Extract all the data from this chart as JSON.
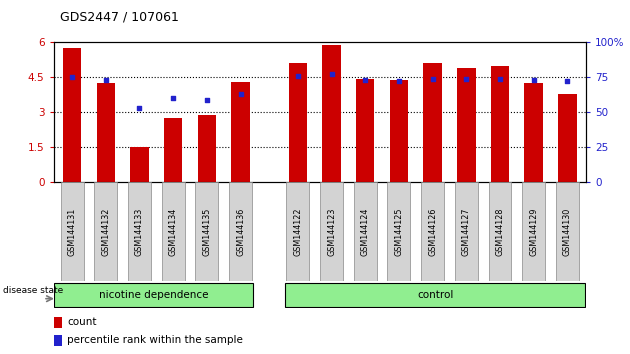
{
  "title": "GDS2447 / 107061",
  "samples": [
    "GSM144131",
    "GSM144132",
    "GSM144133",
    "GSM144134",
    "GSM144135",
    "GSM144136",
    "GSM144122",
    "GSM144123",
    "GSM144124",
    "GSM144125",
    "GSM144126",
    "GSM144127",
    "GSM144128",
    "GSM144129",
    "GSM144130"
  ],
  "bar_heights": [
    5.75,
    4.25,
    1.5,
    2.75,
    2.9,
    4.3,
    5.1,
    5.9,
    4.45,
    4.4,
    5.1,
    4.9,
    5.0,
    4.25,
    3.8
  ],
  "dot_values_left": [
    4.5,
    4.4,
    3.2,
    3.6,
    3.55,
    3.8,
    4.55,
    4.65,
    4.4,
    4.35,
    4.45,
    4.45,
    4.45,
    4.4,
    4.35
  ],
  "bar_color": "#cc0000",
  "dot_color": "#2222cc",
  "ylim_left": [
    0,
    6
  ],
  "ylim_right": [
    0,
    100
  ],
  "yticks_left": [
    0,
    1.5,
    3.0,
    4.5,
    6.0
  ],
  "ytick_labels_left": [
    "0",
    "1.5",
    "3",
    "4.5",
    "6"
  ],
  "yticks_right": [
    0,
    25,
    50,
    75,
    100
  ],
  "ytick_labels_right": [
    "0",
    "25",
    "50",
    "75",
    "100%"
  ],
  "group1_label": "nicotine dependence",
  "group2_label": "control",
  "group1_count": 6,
  "disease_state_label": "disease state",
  "legend_count_label": "count",
  "legend_pct_label": "percentile rank within the sample",
  "group_bg_color": "#90ee90",
  "sample_bg_color": "#d3d3d3",
  "bar_width": 0.55
}
